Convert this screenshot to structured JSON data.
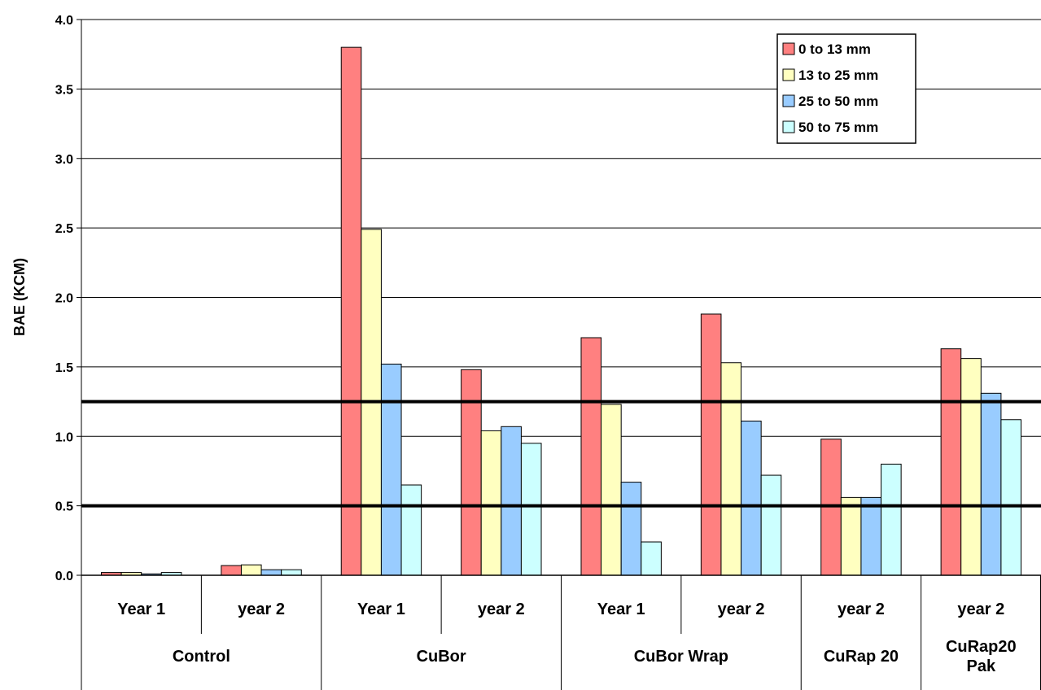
{
  "chart_data": {
    "type": "bar",
    "ylabel": "BAE (KCM)",
    "ylim": [
      0,
      4.0
    ],
    "yticks": [
      "0.0",
      "0.5",
      "1.0",
      "1.5",
      "2.0",
      "2.5",
      "3.0",
      "3.5",
      "4.0"
    ],
    "grid": true,
    "legend_position": "top-right",
    "categories": [
      {
        "sub": "Year 1",
        "group": "Control"
      },
      {
        "sub": "year 2",
        "group": "Control"
      },
      {
        "sub": "Year 1",
        "group": "CuBor"
      },
      {
        "sub": "year 2",
        "group": "CuBor"
      },
      {
        "sub": "Year 1",
        "group": "CuBor Wrap"
      },
      {
        "sub": "year 2",
        "group": "CuBor Wrap"
      },
      {
        "sub": "year 2",
        "group": "CuRap 20"
      },
      {
        "sub": "year 2",
        "group": "CuRap20 Pak"
      }
    ],
    "groups": [
      {
        "label": "Control",
        "span": 2
      },
      {
        "label": "CuBor",
        "span": 2
      },
      {
        "label": "CuBor Wrap",
        "span": 2
      },
      {
        "label": "CuRap 20",
        "span": 1
      },
      {
        "label": "CuRap20 Pak",
        "span": 1
      }
    ],
    "series": [
      {
        "name": "0 to 13 mm",
        "color": "#ff8080",
        "values": [
          0.02,
          0.07,
          3.8,
          1.48,
          1.71,
          1.88,
          0.98,
          1.63
        ]
      },
      {
        "name": "13 to 25 mm",
        "color": "#ffffc0",
        "values": [
          0.02,
          0.075,
          2.49,
          1.04,
          1.23,
          1.53,
          0.56,
          1.56
        ]
      },
      {
        "name": "25 to 50 mm",
        "color": "#99ccff",
        "values": [
          0.01,
          0.04,
          1.52,
          1.07,
          0.67,
          1.11,
          0.56,
          1.31
        ]
      },
      {
        "name": "50 to 75 mm",
        "color": "#ccffff",
        "values": [
          0.02,
          0.04,
          0.65,
          0.95,
          0.24,
          0.72,
          0.8,
          1.12
        ]
      }
    ],
    "reference_lines": [
      1.25,
      0.5
    ]
  }
}
